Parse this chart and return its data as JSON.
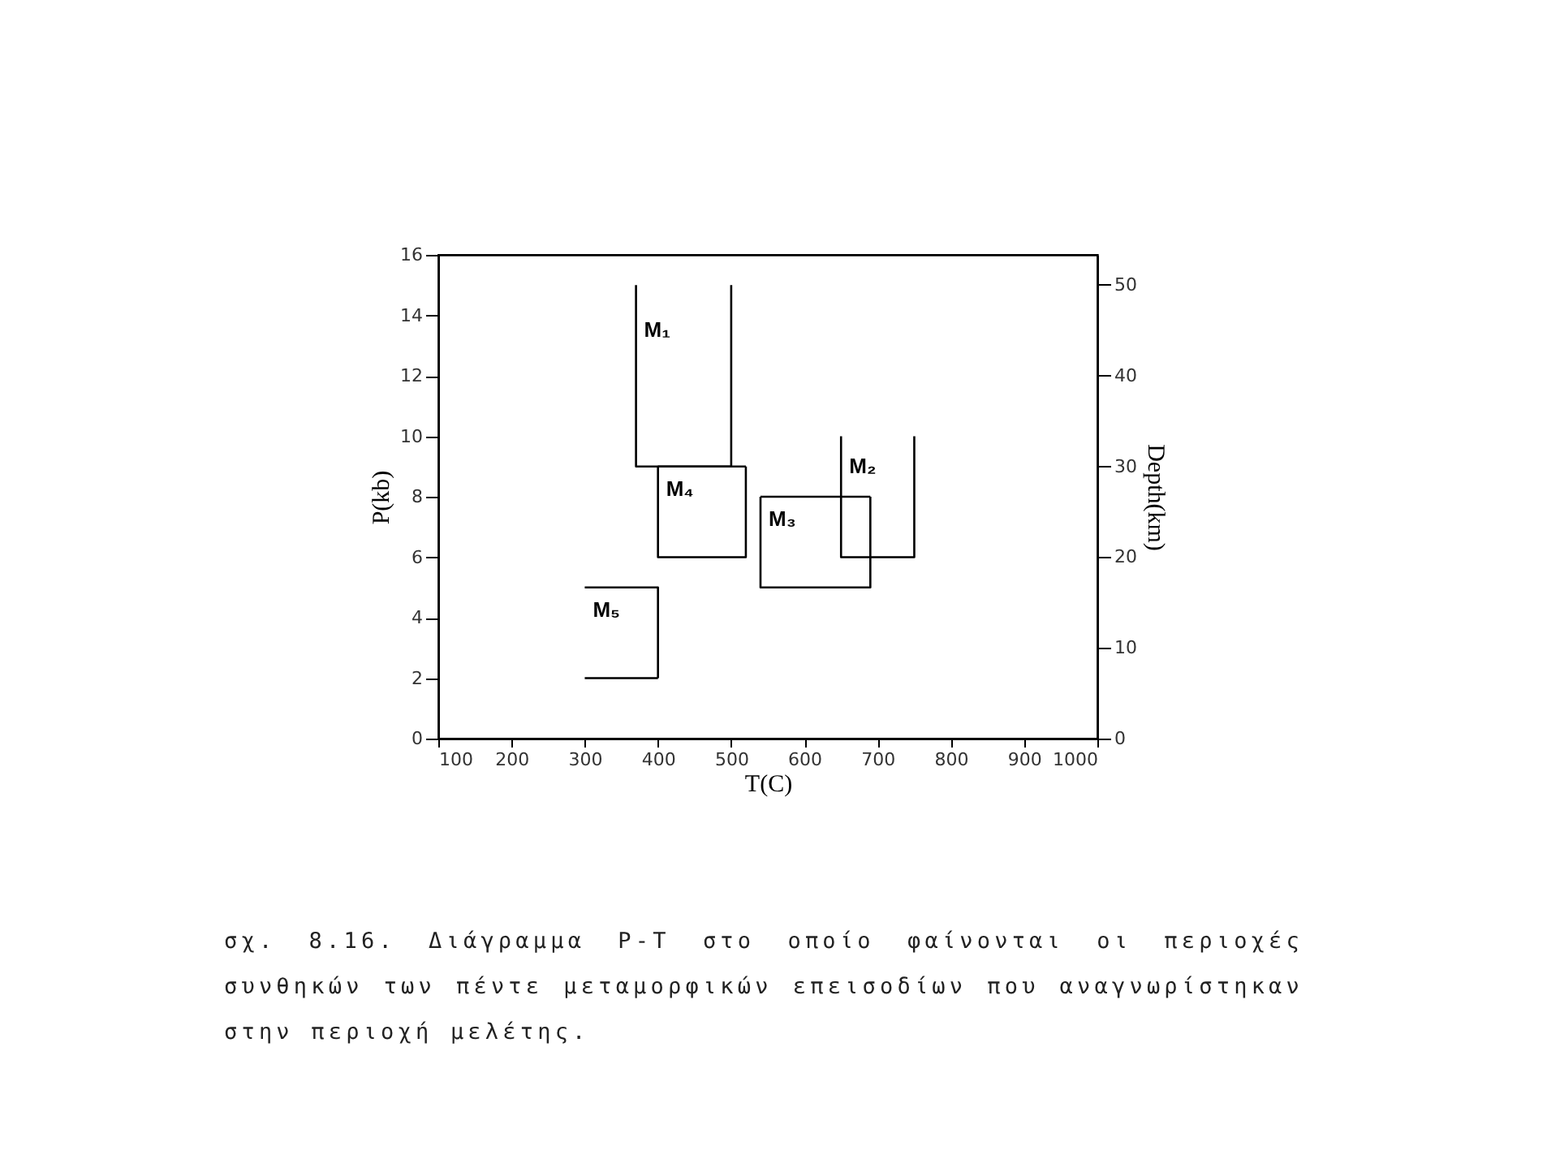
{
  "chart_data": {
    "type": "line",
    "xlabel": "T(C)",
    "ylabel": "P(kb)",
    "y2label": "Depth(km)",
    "xlim": [
      100,
      1000
    ],
    "xticks": [
      100,
      200,
      300,
      400,
      500,
      600,
      700,
      800,
      900,
      1000
    ],
    "ylim": [
      0,
      16
    ],
    "yticks": [
      0,
      2,
      4,
      6,
      8,
      10,
      12,
      14,
      16
    ],
    "y2lim": [
      0,
      53.3
    ],
    "y2ticks": [
      0,
      10,
      20,
      30,
      40,
      50
    ],
    "grid": false,
    "legend": false,
    "marker": "none",
    "line_style": "solid",
    "series": [
      {
        "name": "M₁",
        "color": "#000000",
        "x": [
          370,
          370,
          500,
          500
        ],
        "values": [
          15,
          9,
          9,
          15
        ]
      },
      {
        "name": "M₂",
        "color": "#000000",
        "x": [
          650,
          650,
          750,
          750
        ],
        "values": [
          10,
          6,
          6,
          10
        ]
      },
      {
        "name": "M₃",
        "color": "#000000",
        "x": [
          540,
          540,
          690,
          690,
          null,
          540,
          690
        ],
        "values": [
          8,
          5,
          5,
          8,
          null,
          8,
          8
        ]
      },
      {
        "name": "M₄",
        "color": "#000000",
        "x": [
          400,
          400,
          520,
          520,
          null,
          400,
          520
        ],
        "values": [
          9,
          6,
          6,
          9,
          null,
          9,
          9
        ]
      },
      {
        "name": "M₅",
        "color": "#000000",
        "x": [
          300,
          400,
          400,
          null,
          300,
          400
        ],
        "values": [
          5,
          5,
          2,
          null,
          2,
          2
        ]
      }
    ],
    "annotations": [
      "σχ. 8.16. Διάγραμμα P-T στο οποίο φαίνονται οι περιοχές συνθηκών των πέντε μεταμορφικών επεισοδίων που αναγνωρίστηκαν στην περιοχή μελέτης."
    ]
  }
}
